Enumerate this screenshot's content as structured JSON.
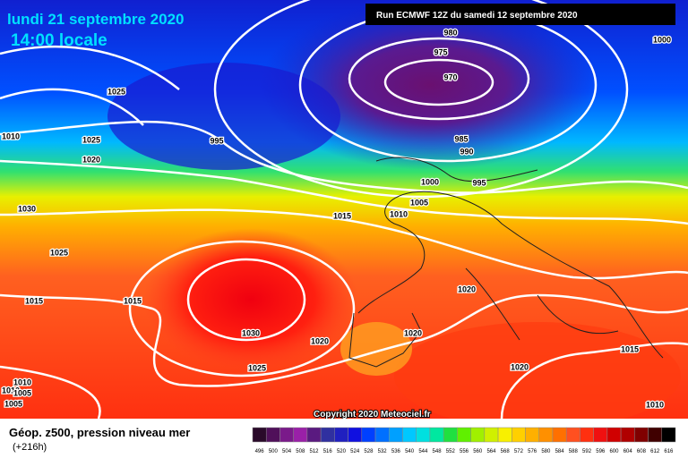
{
  "header": {
    "date": "lundi 21 septembre 2020",
    "time": "14:00 locale",
    "run": "Run ECMWF 12Z du samedi 12 septembre 2020"
  },
  "map": {
    "isobar_labels": [
      "1025",
      "1010",
      "1025",
      "1020",
      "995",
      "980",
      "975",
      "970",
      "1000",
      "985",
      "990",
      "995",
      "1000",
      "1005",
      "1010",
      "1015",
      "1030",
      "1025",
      "1015",
      "1015",
      "1020",
      "1030",
      "1020",
      "1020",
      "1025",
      "1020",
      "1015",
      "1010",
      "1010",
      "1005",
      "1005",
      "1010"
    ],
    "copyright": "Copyright 2020 Meteociel.fr"
  },
  "footer": {
    "title": "Géop. z500, pression niveau mer",
    "lead": "(+216h)",
    "scale": [
      "496",
      "500",
      "504",
      "508",
      "512",
      "516",
      "520",
      "524",
      "528",
      "532",
      "536",
      "540",
      "544",
      "548",
      "552",
      "556",
      "560",
      "564",
      "568",
      "572",
      "576",
      "580",
      "584",
      "588",
      "592",
      "596",
      "600",
      "604",
      "608",
      "612",
      "616"
    ]
  }
}
